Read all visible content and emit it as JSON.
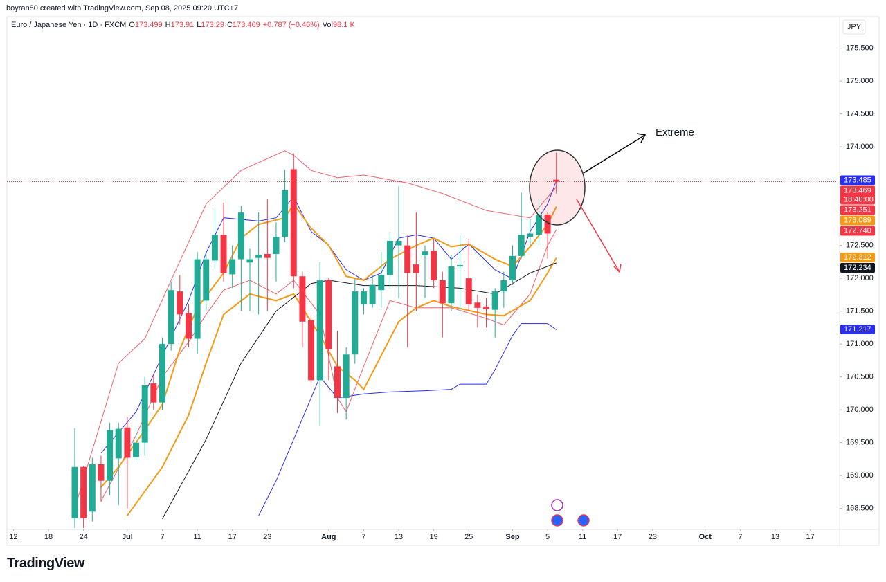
{
  "header": {
    "credit": "boyran80 created with TradingView.com, Sep 08, 2025 09:20 UTC+7",
    "logo": "TradingView"
  },
  "chart_data": {
    "type": "candlestick",
    "symbol": "Euro / Japanese Yen · 1D · FXCM",
    "ohlc_labels": [
      "O",
      "H",
      "L",
      "C"
    ],
    "change": "+0.787 (+0.46%)",
    "volume_label": "Vol",
    "volume": "98.1 K",
    "currency": "JPY",
    "annotation": "Extreme",
    "up_color": "#22ab94",
    "down_color": "#f23645",
    "open": [
      168.35,
      169.13,
      168.45,
      169.17,
      168.92,
      169.26,
      169.73,
      169.28,
      169.5,
      170.4,
      170.11,
      171.0,
      171.8,
      171.47,
      171.08,
      171.66,
      172.27,
      172.66,
      172.06,
      172.29,
      172.24,
      172.31,
      172.37,
      172.37,
      172.63,
      173.66,
      172.03,
      171.36,
      170.45,
      171.97,
      170.66,
      170.18,
      170.84,
      171.6,
      171.6,
      171.82,
      172.05,
      172.5,
      172.5,
      172.21,
      172.35,
      172.42,
      171.97,
      171.62,
      172.18,
      172.0,
      171.63,
      171.57,
      171.52,
      171.8,
      171.97,
      172.34,
      172.63,
      172.66,
      172.97,
      173.499
    ],
    "high": [
      169.72,
      169.15,
      169.27,
      169.3,
      169.8,
      169.8,
      169.9,
      169.72,
      170.5,
      170.55,
      171.1,
      171.95,
      172.05,
      171.6,
      172.4,
      172.4,
      173.05,
      173.15,
      172.5,
      173.1,
      172.45,
      173.0,
      173.2,
      172.85,
      173.65,
      173.9,
      172.1,
      171.45,
      172.25,
      172.0,
      171.2,
      170.95,
      172.0,
      171.85,
      172.05,
      172.4,
      172.7,
      173.4,
      172.65,
      173.0,
      172.5,
      172.6,
      172.1,
      172.35,
      172.65,
      172.6,
      171.75,
      171.7,
      171.85,
      172.1,
      172.5,
      173.3,
      172.9,
      173.2,
      173.0,
      173.91
    ],
    "low": [
      168.2,
      168.2,
      168.3,
      168.6,
      168.7,
      168.55,
      168.5,
      169.2,
      169.3,
      170.0,
      170.0,
      170.9,
      171.3,
      170.95,
      170.85,
      171.5,
      172.15,
      171.95,
      171.85,
      171.5,
      171.5,
      171.45,
      171.5,
      171.95,
      172.55,
      171.85,
      170.95,
      170.4,
      169.75,
      170.45,
      169.95,
      169.85,
      170.7,
      171.45,
      171.55,
      171.55,
      171.85,
      171.7,
      170.95,
      171.5,
      171.7,
      171.85,
      171.1,
      171.5,
      171.45,
      171.5,
      171.25,
      171.25,
      171.1,
      171.55,
      171.9,
      172.3,
      172.5,
      172.5,
      172.3,
      173.29
    ],
    "close": [
      169.13,
      168.35,
      169.17,
      168.92,
      169.69,
      169.71,
      169.27,
      169.5,
      170.37,
      170.11,
      171.0,
      171.82,
      171.45,
      171.08,
      172.29,
      172.29,
      172.66,
      172.08,
      172.29,
      173.0,
      172.29,
      172.36,
      172.31,
      172.63,
      173.34,
      172.03,
      171.34,
      170.45,
      171.97,
      170.92,
      170.18,
      170.84,
      171.8,
      171.8,
      171.9,
      172.05,
      172.57,
      172.57,
      172.08,
      172.08,
      172.41,
      171.97,
      171.62,
      172.18,
      172.2,
      171.6,
      171.55,
      171.53,
      171.8,
      171.97,
      172.34,
      172.66,
      172.68,
      172.97,
      172.68,
      173.469
    ],
    "series": [
      {
        "name": "Upper band",
        "color": "#f0606a",
        "width": 1,
        "x": [
          0,
          5,
          8,
          11,
          15,
          19,
          24,
          25,
          27,
          30,
          33,
          38,
          42,
          47,
          52,
          55
        ],
        "values": [
          168.5,
          170.71,
          171.08,
          171.97,
          173.13,
          173.64,
          173.94,
          173.87,
          173.64,
          173.53,
          173.57,
          173.45,
          173.29,
          173.03,
          172.92,
          173.39
        ]
      },
      {
        "name": "Lower fast band",
        "color": "#f0606a",
        "width": 1,
        "x": [
          3,
          7,
          10,
          13,
          15,
          17,
          20,
          23,
          25,
          28,
          30,
          31,
          33,
          36,
          39,
          43,
          47,
          49,
          52,
          54,
          55
        ],
        "values": [
          168.61,
          169.61,
          170.5,
          171.03,
          171.45,
          171.82,
          171.97,
          171.76,
          171.97,
          171.45,
          170.18,
          169.97,
          170.66,
          171.66,
          171.55,
          171.55,
          171.39,
          171.29,
          171.76,
          172.5,
          172.74
        ]
      },
      {
        "name": "Fast upper",
        "color": "#2a2ef0",
        "width": 1,
        "x": [
          3,
          7,
          10,
          13,
          15,
          17,
          21,
          23,
          25,
          27,
          29,
          31,
          33,
          35,
          37,
          39,
          41,
          43,
          45,
          48,
          50,
          52,
          54,
          55
        ],
        "values": [
          169.34,
          169.97,
          170.82,
          171.66,
          172.39,
          172.92,
          172.87,
          172.92,
          173.24,
          172.71,
          172.5,
          172.13,
          171.97,
          172.08,
          172.61,
          172.66,
          172.61,
          172.29,
          172.52,
          172.13,
          171.99,
          172.71,
          173.13,
          173.485
        ]
      },
      {
        "name": "Lower band",
        "color": "#2a2ef0",
        "width": 1,
        "x": [
          21,
          23,
          25,
          28,
          30,
          33,
          36,
          40,
          43,
          44,
          47,
          48,
          50,
          51,
          54,
          55
        ],
        "values": [
          168.39,
          168.92,
          169.55,
          170.5,
          170.18,
          170.24,
          170.27,
          170.29,
          170.31,
          170.39,
          170.39,
          170.61,
          171.13,
          171.31,
          171.31,
          171.217
        ]
      },
      {
        "name": "Orange upper",
        "color": "#f59a16",
        "width": 2,
        "x": [
          3,
          5,
          7,
          10,
          12,
          14,
          17,
          19,
          21,
          24,
          25,
          27,
          29,
          31,
          33,
          36,
          39,
          41,
          43,
          45,
          48,
          50,
          52,
          54,
          55
        ],
        "values": [
          168.82,
          169.13,
          169.5,
          170.08,
          170.92,
          171.55,
          172.08,
          172.61,
          172.82,
          172.92,
          173.13,
          172.76,
          172.5,
          172.03,
          171.97,
          172.29,
          172.5,
          172.61,
          172.48,
          172.52,
          172.29,
          172.18,
          172.48,
          172.82,
          173.089
        ]
      },
      {
        "name": "Orange lower",
        "color": "#f59a16",
        "width": 2,
        "x": [
          6,
          10,
          13,
          15,
          17,
          20,
          23,
          25,
          28,
          30,
          32,
          33,
          37,
          39,
          41,
          43,
          47,
          49,
          52,
          54,
          55
        ],
        "values": [
          168.39,
          169.13,
          169.92,
          170.71,
          171.45,
          171.76,
          171.66,
          171.76,
          171.13,
          170.66,
          170.45,
          170.31,
          171.34,
          171.55,
          171.66,
          171.57,
          171.45,
          171.43,
          171.66,
          172.08,
          172.312
        ]
      },
      {
        "name": "Moving average",
        "color": "#131722",
        "width": 1,
        "x": [
          10,
          15,
          19,
          23,
          27,
          29,
          33,
          39,
          44,
          48,
          52,
          55
        ],
        "values": [
          168.34,
          169.55,
          170.71,
          171.5,
          171.92,
          171.97,
          171.89,
          171.89,
          171.85,
          171.76,
          172.08,
          172.234
        ]
      }
    ],
    "price_labels": [
      {
        "value": 173.485,
        "label": "173.485",
        "color": "#2a2ef0"
      },
      {
        "value": 173.469,
        "label": "173.469",
        "time": "18:40:00",
        "color": "#f23645"
      },
      {
        "value": 173.251,
        "label": "173.251",
        "color": "#f23645"
      },
      {
        "value": 173.089,
        "label": "173.089",
        "color": "#f59a16"
      },
      {
        "value": 172.74,
        "label": "172.740",
        "color": "#f23645"
      },
      {
        "value": 172.312,
        "label": "172.312",
        "color": "#f59a16"
      },
      {
        "value": 172.234,
        "label": "172.234",
        "color": "#131722"
      },
      {
        "value": 171.217,
        "label": "171.217",
        "color": "#2a2ef0"
      }
    ],
    "ylim": [
      168.18,
      175.98
    ],
    "yticks": [
      {
        "value": 168.5,
        "label": "168.500"
      },
      {
        "value": 169,
        "label": "169.000"
      },
      {
        "value": 169.5,
        "label": "169.500"
      },
      {
        "value": 170,
        "label": "170.000"
      },
      {
        "value": 170.5,
        "label": "170.500"
      },
      {
        "value": 171,
        "label": "171.000"
      },
      {
        "value": 171.5,
        "label": "171.500"
      },
      {
        "value": 172,
        "label": "172.000"
      },
      {
        "value": 172.5,
        "label": "172.500"
      },
      {
        "value": 173,
        "label": "173.000"
      },
      {
        "value": 173.5,
        "label": "173.500"
      },
      {
        "value": 174,
        "label": "174.000"
      },
      {
        "value": 174.5,
        "label": "174.500"
      },
      {
        "value": 175,
        "label": "175.000"
      },
      {
        "value": 175.5,
        "label": "175.500"
      }
    ],
    "xticks": [
      {
        "value": -7,
        "label": "12"
      },
      {
        "value": -3,
        "label": "18"
      },
      {
        "value": 1,
        "label": "24"
      },
      {
        "value": 6,
        "label": "Jul"
      },
      {
        "value": 10,
        "label": "7"
      },
      {
        "value": 14,
        "label": "11"
      },
      {
        "value": 18,
        "label": "17"
      },
      {
        "value": 22,
        "label": "23"
      },
      {
        "value": 29,
        "label": "Aug"
      },
      {
        "value": 33,
        "label": "7"
      },
      {
        "value": 37,
        "label": "13"
      },
      {
        "value": 41,
        "label": "19"
      },
      {
        "value": 45,
        "label": "25"
      },
      {
        "value": 50,
        "label": "Sep"
      },
      {
        "value": 54,
        "label": "5"
      },
      {
        "value": 58,
        "label": "11"
      },
      {
        "value": 62,
        "label": "17"
      },
      {
        "value": 66,
        "label": "23"
      },
      {
        "value": 72,
        "label": "Oct"
      },
      {
        "value": 76,
        "label": "7"
      },
      {
        "value": 80,
        "label": "13"
      },
      {
        "value": 84,
        "label": "17"
      }
    ],
    "grid": false
  }
}
